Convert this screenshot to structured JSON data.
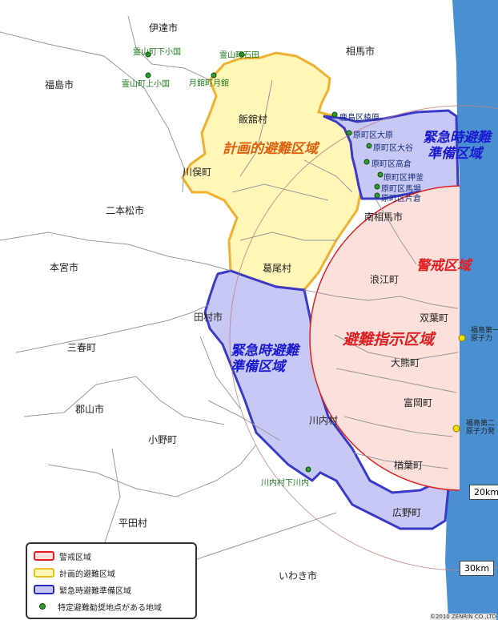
{
  "municipalities": [
    "伊達市",
    "相馬市",
    "福島市",
    "飯舘村",
    "川俣町",
    "二本松市",
    "南相馬市",
    "本宮市",
    "葛尾村",
    "浪江町",
    "田村市",
    "双葉町",
    "三春町",
    "大熊町",
    "郡山市",
    "富岡町",
    "川内村",
    "小野町",
    "楢葉町",
    "広野町",
    "平田村",
    "いわき市"
  ],
  "zones": {
    "planned": "計画的避難区域",
    "emergency_east": [
      "緊急時避難",
      "準備区域"
    ],
    "emergency_west": [
      "緊急時避難",
      "準備区域"
    ],
    "warning": "警戒区域",
    "evacuation_order": "避難指示区域"
  },
  "spots": [
    "霊山町下小国",
    "霊山町石田",
    "霊山町上小国",
    "月舘町月舘",
    "鹿島区橲原",
    "原町区大原",
    "原町区大谷",
    "原町区高倉",
    "原町区押釜",
    "原町区馬場",
    "原町区片倉",
    "川内村下川内"
  ],
  "plants": [
    "福島第一原子力発電所",
    "福島第二原子力発電所"
  ],
  "plant_labels_visible": [
    [
      "福島第一",
      "原子力"
    ],
    [
      "福島第二",
      "原子力発"
    ]
  ],
  "scale": [
    "20km",
    "30km"
  ],
  "legend": [
    {
      "label": "警戒区域",
      "color": "#e02020",
      "fill": "#fbe0dc"
    },
    {
      "label": "計画的避難区域",
      "color": "#e8c020",
      "fill": "#fff6b8"
    },
    {
      "label": "緊急時避難準備区域",
      "color": "#2b2bbf",
      "fill": "#c8c8f4"
    },
    {
      "label": "特定避難勧奨地点がある地域",
      "color": "#2e9b2e"
    }
  ],
  "copyright": "©2010 ZENRIN CO.,LTD",
  "colors": {
    "sea": "#4a90d0",
    "warning": "#e02020",
    "planned_text": "#e06010",
    "emergency_text": "#1a1ad0"
  }
}
